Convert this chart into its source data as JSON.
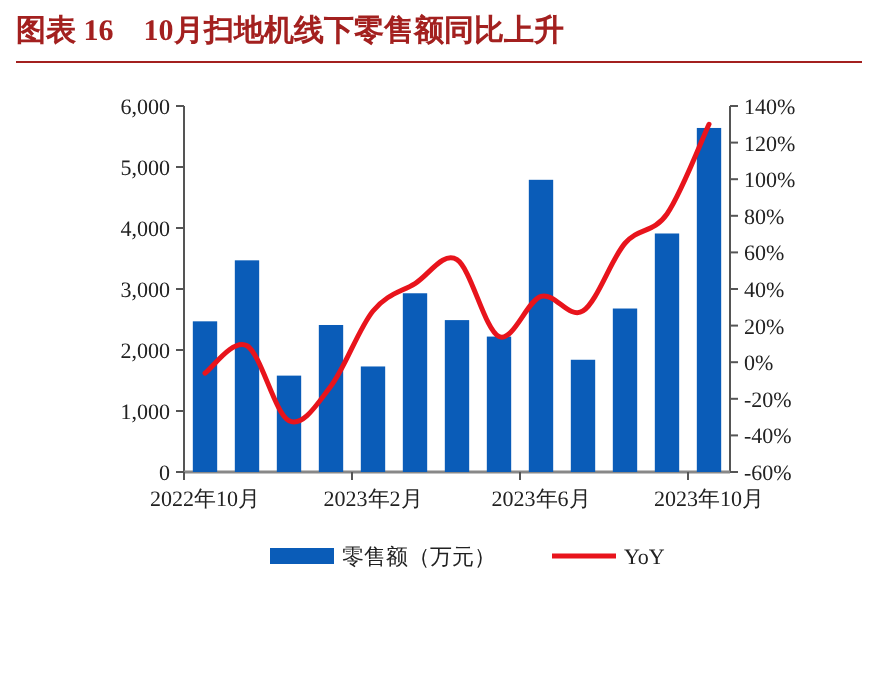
{
  "chart_data": {
    "type": "bar",
    "title": "图表 16　10月扫地机线下零售额同比上升",
    "categories": [
      "2022年10月",
      null,
      null,
      null,
      "2023年2月",
      null,
      null,
      null,
      "2023年6月",
      null,
      null,
      null,
      "2023年10月"
    ],
    "series": [
      {
        "name": "零售额（万元）",
        "color": "#0a5cb8",
        "values": [
          2470,
          3470,
          1580,
          2410,
          1730,
          2930,
          2490,
          2220,
          4790,
          1840,
          2680,
          3910,
          5640
        ]
      },
      {
        "name": "YoY",
        "type": "line",
        "axis": "y2",
        "color": "#e8141c",
        "values": [
          -6,
          9,
          -32,
          -13,
          28,
          43,
          56,
          14,
          36,
          28,
          65,
          81,
          130
        ]
      }
    ],
    "ylim": [
      0,
      6000
    ],
    "yticks": [
      {
        "value": 0,
        "label": "0"
      },
      {
        "value": 1000,
        "label": "1,000"
      },
      {
        "value": 2000,
        "label": "2,000"
      },
      {
        "value": 3000,
        "label": "3,000"
      },
      {
        "value": 4000,
        "label": "4,000"
      },
      {
        "value": 5000,
        "label": "5,000"
      },
      {
        "value": 6000,
        "label": "6,000"
      }
    ],
    "y2lim": [
      -60,
      140
    ],
    "y2ticks": [
      {
        "value": -60,
        "label": "-60%"
      },
      {
        "value": -40,
        "label": "-40%"
      },
      {
        "value": -20,
        "label": "-20%"
      },
      {
        "value": 0,
        "label": "0%"
      },
      {
        "value": 20,
        "label": "20%"
      },
      {
        "value": 40,
        "label": "40%"
      },
      {
        "value": 60,
        "label": "60%"
      },
      {
        "value": 80,
        "label": "80%"
      },
      {
        "value": 100,
        "label": "100%"
      },
      {
        "value": 120,
        "label": "120%"
      },
      {
        "value": 140,
        "label": "140%"
      }
    ],
    "legend": "bottom"
  }
}
